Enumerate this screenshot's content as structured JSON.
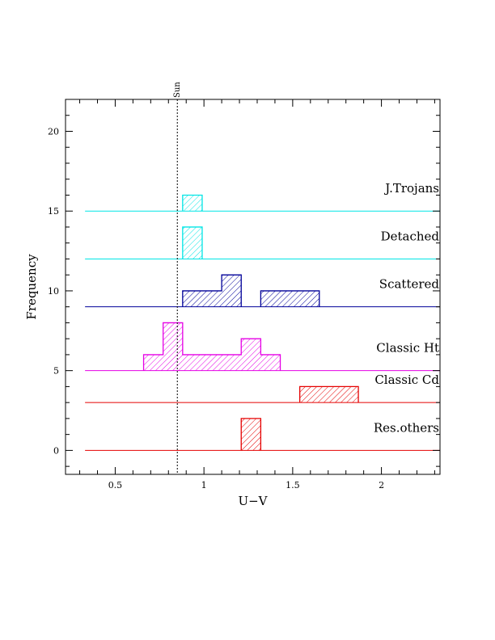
{
  "chart_data": {
    "type": "histogram",
    "title": "",
    "xlabel": "U−V",
    "ylabel": "Frequency",
    "xlim": [
      0.22,
      2.33
    ],
    "ylim": [
      -1.5,
      22
    ],
    "xticks": [
      0.5,
      1,
      1.5,
      2
    ],
    "xtick_labels": [
      "0.5",
      "1",
      "1.5",
      "2"
    ],
    "yticks": [
      0,
      5,
      10,
      15,
      20
    ],
    "ytick_labels": [
      "0",
      "5",
      "10",
      "15",
      "20"
    ],
    "reference_line": {
      "x": 0.85,
      "label": "Sun",
      "style": "dotted"
    },
    "grid": false,
    "series": [
      {
        "name": "J.Trojans",
        "color": "#00e5e5",
        "baseline": 15,
        "x_start": 0.33,
        "x_end": 2.33,
        "bins": [
          {
            "x0": 0.88,
            "x1": 0.99,
            "count": 1
          }
        ]
      },
      {
        "name": "Detached",
        "color": "#00e5e5",
        "baseline": 12,
        "x_start": 0.33,
        "x_end": 2.33,
        "bins": [
          {
            "x0": 0.88,
            "x1": 0.99,
            "count": 2
          }
        ]
      },
      {
        "name": "Scattered",
        "color": "#000099",
        "baseline": 9,
        "x_start": 0.33,
        "x_end": 2.33,
        "bins": [
          {
            "x0": 0.88,
            "x1": 1.1,
            "count": 1
          },
          {
            "x0": 1.1,
            "x1": 1.21,
            "count": 2
          },
          {
            "x0": 1.32,
            "x1": 1.65,
            "count": 1
          }
        ]
      },
      {
        "name": "Classic Ht",
        "color": "#e500e5",
        "baseline": 5,
        "x_start": 0.33,
        "x_end": 2.33,
        "bins": [
          {
            "x0": 0.66,
            "x1": 0.77,
            "count": 1
          },
          {
            "x0": 0.77,
            "x1": 0.88,
            "count": 3
          },
          {
            "x0": 0.88,
            "x1": 1.21,
            "count": 1
          },
          {
            "x0": 1.21,
            "x1": 1.32,
            "count": 2
          },
          {
            "x0": 1.32,
            "x1": 1.43,
            "count": 1
          }
        ]
      },
      {
        "name": "Classic Cd",
        "color": "#e50000",
        "baseline": 3,
        "x_start": 0.33,
        "x_end": 2.33,
        "bins": [
          {
            "x0": 1.54,
            "x1": 1.87,
            "count": 1
          }
        ]
      },
      {
        "name": "Res.others",
        "color": "#e50000",
        "baseline": 0,
        "x_start": 0.33,
        "x_end": 2.33,
        "bins": [
          {
            "x0": 1.21,
            "x1": 1.32,
            "count": 2
          }
        ]
      }
    ]
  }
}
